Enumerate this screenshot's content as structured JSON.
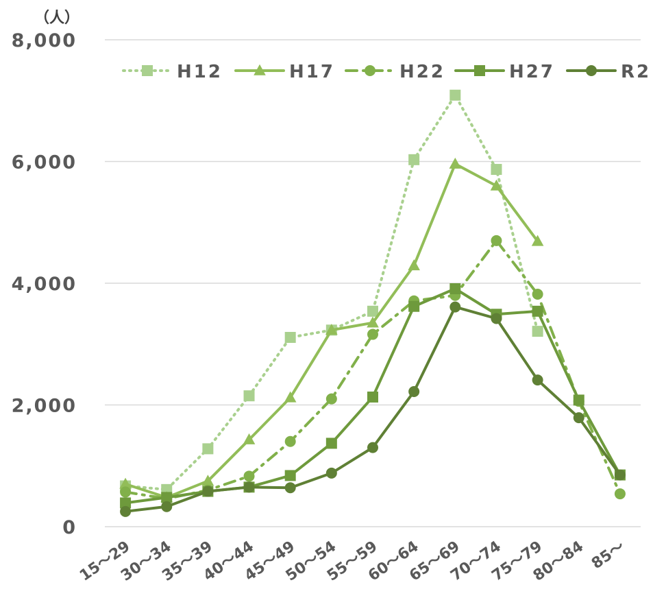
{
  "chart_data": {
    "type": "line",
    "unit_label": "（人）",
    "categories": [
      "15～29",
      "30～34",
      "35～39",
      "40～44",
      "45～49",
      "50～54",
      "55～59",
      "60～64",
      "65～69",
      "70～74",
      "75～79",
      "80～84",
      "85～"
    ],
    "ylim": [
      0,
      8000
    ],
    "yticks": [
      "0",
      "2,000",
      "4,000",
      "6,000",
      "8,000"
    ],
    "grid": true,
    "legend_position": "top",
    "series": [
      {
        "name": "H12",
        "color": "#a9d08e",
        "dash": "dotted",
        "marker": "square",
        "values": [
          670,
          610,
          1280,
          2150,
          3110,
          3230,
          3540,
          6030,
          7090,
          5870,
          3210,
          null,
          null
        ]
      },
      {
        "name": "H17",
        "color": "#92bd58",
        "dash": "solid",
        "marker": "triangle",
        "values": [
          700,
          480,
          750,
          1430,
          2120,
          3230,
          3350,
          4290,
          5960,
          5600,
          4690,
          null,
          null
        ]
      },
      {
        "name": "H22",
        "color": "#81b04a",
        "dash": "dashdot",
        "marker": "circle",
        "values": [
          570,
          460,
          600,
          830,
          1400,
          2100,
          3160,
          3710,
          3800,
          4700,
          3820,
          2060,
          540
        ]
      },
      {
        "name": "H27",
        "color": "#6e9a3c",
        "dash": "solid",
        "marker": "square",
        "values": [
          390,
          480,
          580,
          650,
          840,
          1370,
          2130,
          3620,
          3910,
          3490,
          3540,
          2080,
          850
        ]
      },
      {
        "name": "R2",
        "color": "#5f8035",
        "dash": "solid",
        "marker": "circle",
        "values": [
          250,
          330,
          580,
          650,
          640,
          880,
          1300,
          2220,
          3610,
          3420,
          2410,
          1790,
          850
        ]
      }
    ]
  }
}
